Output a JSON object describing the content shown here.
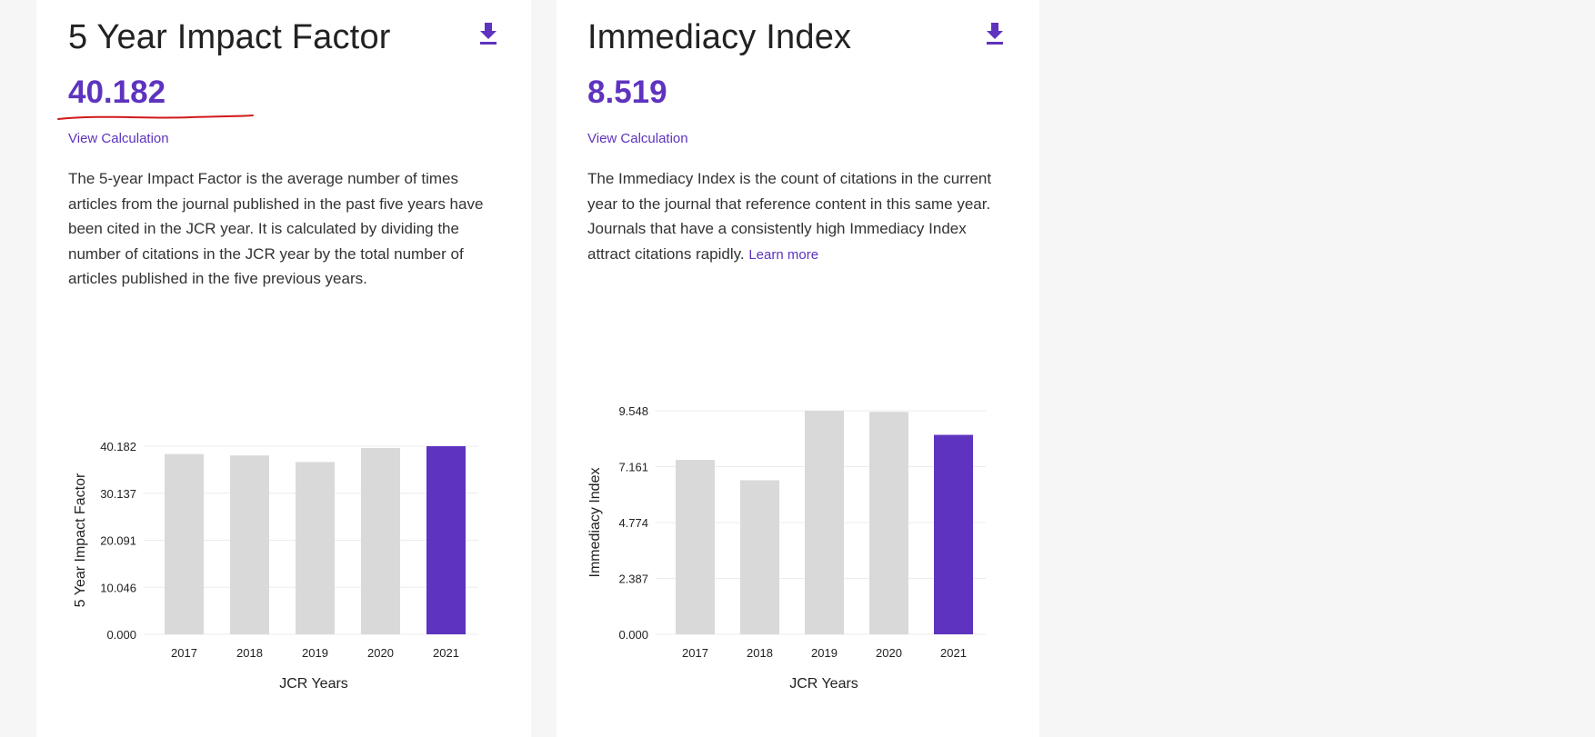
{
  "cards": [
    {
      "title": "5 Year Impact Factor",
      "value": "40.182",
      "calc_link": "View Calculation",
      "description": "The 5-year Impact Factor is the average number of times articles from the journal published in the past five years have been cited in the JCR year. It is calculated by dividing the number of citations in the JCR year by the total number of articles published in the five previous years.",
      "download_icon": "download-icon"
    },
    {
      "title": "Immediacy Index",
      "value": "8.519",
      "calc_link": "View Calculation",
      "description": "The Immediacy Index is the count of citations in the current year to the journal that reference content in this same year. Journals that have a consistently high Immediacy Index attract citations rapidly.",
      "learn_more": "Learn more",
      "download_icon": "download-icon"
    }
  ],
  "colors": {
    "accent": "#5e33bf",
    "bar_default": "#d9d9d9",
    "bar_highlight": "#5e33bf",
    "annotation": "#d11a1a"
  },
  "chart_data": [
    {
      "type": "bar",
      "categories": [
        "2017",
        "2018",
        "2019",
        "2020",
        "2021"
      ],
      "values": [
        38.5,
        38.2,
        36.8,
        39.8,
        40.182
      ],
      "highlight": "2021",
      "xlabel": "JCR Years",
      "ylabel": "5 Year Impact Factor",
      "yticks": [
        "0.000",
        "10.046",
        "20.091",
        "30.137",
        "40.182"
      ],
      "ylim": [
        0,
        40.182
      ],
      "grid": true
    },
    {
      "type": "bar",
      "categories": [
        "2017",
        "2018",
        "2019",
        "2020",
        "2021"
      ],
      "values": [
        7.45,
        6.58,
        9.548,
        9.5,
        8.519
      ],
      "highlight": "2021",
      "xlabel": "JCR Years",
      "ylabel": "Immediacy Index",
      "yticks": [
        "0.000",
        "2.387",
        "4.774",
        "7.161",
        "9.548"
      ],
      "ylim": [
        0,
        9.548
      ],
      "grid": true
    }
  ]
}
